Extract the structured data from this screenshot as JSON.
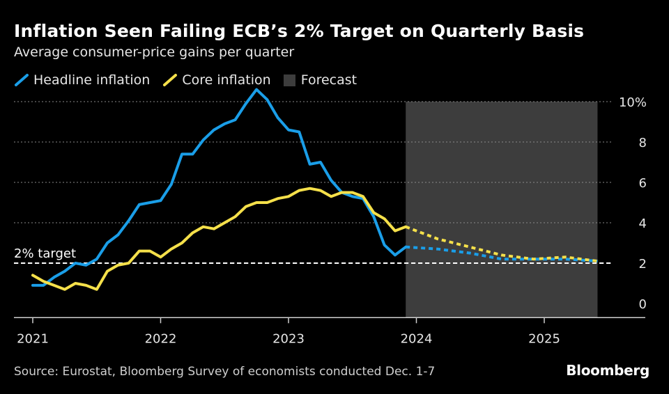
{
  "title": "Inflation Seen Failing ECB’s 2% Target on Quarterly Basis",
  "subtitle": "Average consumer-price gains per quarter",
  "legend": [
    {
      "label": "Headline inflation",
      "kind": "line",
      "color": "#1a9ee8"
    },
    {
      "label": "Core inflation",
      "kind": "line",
      "color": "#f5e04a"
    },
    {
      "label": "Forecast",
      "kind": "box",
      "color": "#3d3d3d"
    }
  ],
  "source": "Source: Eurostat, Bloomberg Survey of economists conducted Dec. 1-7",
  "brand": "Bloomberg",
  "chart_data": {
    "type": "line",
    "x_ticks": [
      "2021",
      "2022",
      "2023",
      "2024",
      "2025"
    ],
    "y_ticks": [
      "0",
      "2",
      "4",
      "6",
      "8",
      "10%"
    ],
    "ylim": [
      -0.7,
      10
    ],
    "xlim": [
      "2021-01",
      "2025-12"
    ],
    "grid": true,
    "forecast_range": [
      "2023-12",
      "2025-06"
    ],
    "target": {
      "label": "2% target",
      "value": 2
    },
    "series": [
      {
        "name": "Headline inflation",
        "color": "#1a9ee8",
        "actual": [
          [
            "2021-01",
            0.9
          ],
          [
            "2021-02",
            0.9
          ],
          [
            "2021-03",
            1.3
          ],
          [
            "2021-04",
            1.6
          ],
          [
            "2021-05",
            2.0
          ],
          [
            "2021-06",
            1.9
          ],
          [
            "2021-07",
            2.2
          ],
          [
            "2021-08",
            3.0
          ],
          [
            "2021-09",
            3.4
          ],
          [
            "2021-10",
            4.1
          ],
          [
            "2021-11",
            4.9
          ],
          [
            "2021-12",
            5.0
          ],
          [
            "2022-01",
            5.1
          ],
          [
            "2022-02",
            5.9
          ],
          [
            "2022-03",
            7.4
          ],
          [
            "2022-04",
            7.4
          ],
          [
            "2022-05",
            8.1
          ],
          [
            "2022-06",
            8.6
          ],
          [
            "2022-07",
            8.9
          ],
          [
            "2022-08",
            9.1
          ],
          [
            "2022-09",
            9.9
          ],
          [
            "2022-10",
            10.6
          ],
          [
            "2022-11",
            10.1
          ],
          [
            "2022-12",
            9.2
          ],
          [
            "2023-01",
            8.6
          ],
          [
            "2023-02",
            8.5
          ],
          [
            "2023-03",
            6.9
          ],
          [
            "2023-04",
            7.0
          ],
          [
            "2023-05",
            6.1
          ],
          [
            "2023-06",
            5.5
          ],
          [
            "2023-07",
            5.3
          ],
          [
            "2023-08",
            5.2
          ],
          [
            "2023-09",
            4.3
          ],
          [
            "2023-10",
            2.9
          ],
          [
            "2023-11",
            2.4
          ],
          [
            "2023-12",
            2.8
          ]
        ],
        "forecast": [
          [
            "2023-12",
            2.8
          ],
          [
            "2024-03",
            2.7
          ],
          [
            "2024-06",
            2.5
          ],
          [
            "2024-09",
            2.2
          ],
          [
            "2024-12",
            2.2
          ],
          [
            "2025-03",
            2.2
          ],
          [
            "2025-06",
            2.1
          ]
        ]
      },
      {
        "name": "Core inflation",
        "color": "#f5e04a",
        "actual": [
          [
            "2021-01",
            1.4
          ],
          [
            "2021-02",
            1.1
          ],
          [
            "2021-03",
            0.9
          ],
          [
            "2021-04",
            0.7
          ],
          [
            "2021-05",
            1.0
          ],
          [
            "2021-06",
            0.9
          ],
          [
            "2021-07",
            0.7
          ],
          [
            "2021-08",
            1.6
          ],
          [
            "2021-09",
            1.9
          ],
          [
            "2021-10",
            2.0
          ],
          [
            "2021-11",
            2.6
          ],
          [
            "2021-12",
            2.6
          ],
          [
            "2022-01",
            2.3
          ],
          [
            "2022-02",
            2.7
          ],
          [
            "2022-03",
            3.0
          ],
          [
            "2022-04",
            3.5
          ],
          [
            "2022-05",
            3.8
          ],
          [
            "2022-06",
            3.7
          ],
          [
            "2022-07",
            4.0
          ],
          [
            "2022-08",
            4.3
          ],
          [
            "2022-09",
            4.8
          ],
          [
            "2022-10",
            5.0
          ],
          [
            "2022-11",
            5.0
          ],
          [
            "2022-12",
            5.2
          ],
          [
            "2023-01",
            5.3
          ],
          [
            "2023-02",
            5.6
          ],
          [
            "2023-03",
            5.7
          ],
          [
            "2023-04",
            5.6
          ],
          [
            "2023-05",
            5.3
          ],
          [
            "2023-06",
            5.5
          ],
          [
            "2023-07",
            5.5
          ],
          [
            "2023-08",
            5.3
          ],
          [
            "2023-09",
            4.5
          ],
          [
            "2023-10",
            4.2
          ],
          [
            "2023-11",
            3.6
          ],
          [
            "2023-12",
            3.8
          ]
        ],
        "forecast": [
          [
            "2023-12",
            3.8
          ],
          [
            "2024-03",
            3.2
          ],
          [
            "2024-06",
            2.8
          ],
          [
            "2024-09",
            2.4
          ],
          [
            "2024-12",
            2.2
          ],
          [
            "2025-03",
            2.3
          ],
          [
            "2025-06",
            2.1
          ]
        ]
      }
    ]
  }
}
